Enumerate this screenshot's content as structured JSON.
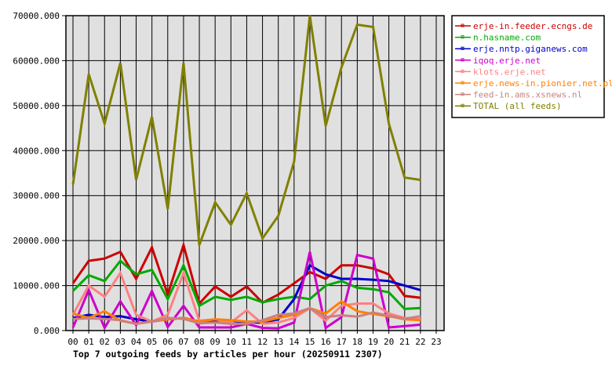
{
  "chart_data": {
    "type": "line",
    "title": "Top 7 outgoing feeds by articles per hour (20250911 2307)",
    "xlabel": "",
    "ylabel": "",
    "categories": [
      "00",
      "01",
      "02",
      "03",
      "04",
      "05",
      "06",
      "07",
      "08",
      "09",
      "10",
      "11",
      "12",
      "13",
      "14",
      "15",
      "16",
      "17",
      "18",
      "19",
      "20",
      "21",
      "22",
      "23"
    ],
    "ylim": [
      0,
      70000
    ],
    "yticks": [
      "0.000",
      "10000.000",
      "20000.000",
      "30000.000",
      "40000.000",
      "50000.000",
      "60000.000",
      "70000.000"
    ],
    "grid": true,
    "legend_position": "right-top",
    "series": [
      {
        "name": "erje-in.feeder.ecngs.de",
        "color": "#cc0000",
        "values": [
          10500,
          15500,
          16000,
          17500,
          11500,
          18500,
          8000,
          19000,
          6000,
          9800,
          7500,
          9800,
          6200,
          8000,
          10500,
          13000,
          11500,
          14500,
          14500,
          13800,
          12500,
          7700,
          7300
        ]
      },
      {
        "name": "n.hasname.com",
        "color": "#00aa00",
        "values": [
          8800,
          12300,
          11000,
          15500,
          12500,
          13500,
          7000,
          14500,
          5500,
          7500,
          6800,
          7500,
          6300,
          7000,
          7500,
          7000,
          10000,
          11000,
          9500,
          9200,
          8500,
          4800,
          5000
        ]
      },
      {
        "name": "erje.nntp.giganews.com",
        "color": "#0000cc",
        "values": [
          2800,
          3500,
          3000,
          3200,
          2500,
          2000,
          2500,
          2800,
          2000,
          2300,
          2200,
          1800,
          1800,
          2500,
          7000,
          14500,
          12500,
          11500,
          11500,
          11300,
          11000,
          10000,
          9000
        ]
      },
      {
        "name": "iqoq.erje.net",
        "color": "#cc00cc",
        "values": [
          700,
          9000,
          600,
          6500,
          1200,
          8800,
          800,
          5500,
          700,
          700,
          700,
          1500,
          600,
          500,
          1800,
          17500,
          600,
          3000,
          16800,
          16000,
          700,
          1000,
          1300
        ]
      },
      {
        "name": "klots.erje.net",
        "color": "#ff8080",
        "values": [
          3500,
          10000,
          7500,
          12800,
          3500,
          2000,
          3500,
          12800,
          2200,
          2500,
          1800,
          4500,
          1500,
          1800,
          2800,
          5000,
          2200,
          5500,
          6000,
          6000,
          3800,
          2800,
          2500
        ]
      },
      {
        "name": "erje.news-in.pionier.net.pl",
        "color": "#ff8000",
        "values": [
          3800,
          2800,
          4300,
          2200,
          1500,
          2000,
          2500,
          2800,
          2000,
          2500,
          2300,
          2000,
          2000,
          2800,
          3500,
          5000,
          3800,
          6500,
          4300,
          3700,
          3200,
          2500,
          2300
        ]
      },
      {
        "name": "feed-in.ams.xsnews.nl",
        "color": "#cc8080",
        "values": [
          2600,
          2700,
          2600,
          2300,
          1500,
          2000,
          2800,
          2600,
          1600,
          1800,
          1500,
          1500,
          2300,
          3500,
          3800,
          5000,
          3000,
          3400,
          3100,
          4000,
          3300,
          2600,
          3200
        ]
      },
      {
        "name": "TOTAL (all feeds)",
        "color": "#808000",
        "values": [
          32500,
          57000,
          46000,
          59500,
          33500,
          47500,
          27000,
          59500,
          19000,
          28500,
          23500,
          30500,
          20500,
          25500,
          37500,
          70000,
          45500,
          58500,
          68000,
          67500,
          46000,
          34000,
          33500
        ]
      }
    ]
  },
  "colors": {
    "plot_background": "#e0e0e0",
    "grid": "#000000",
    "page_background": "#ffffff"
  }
}
